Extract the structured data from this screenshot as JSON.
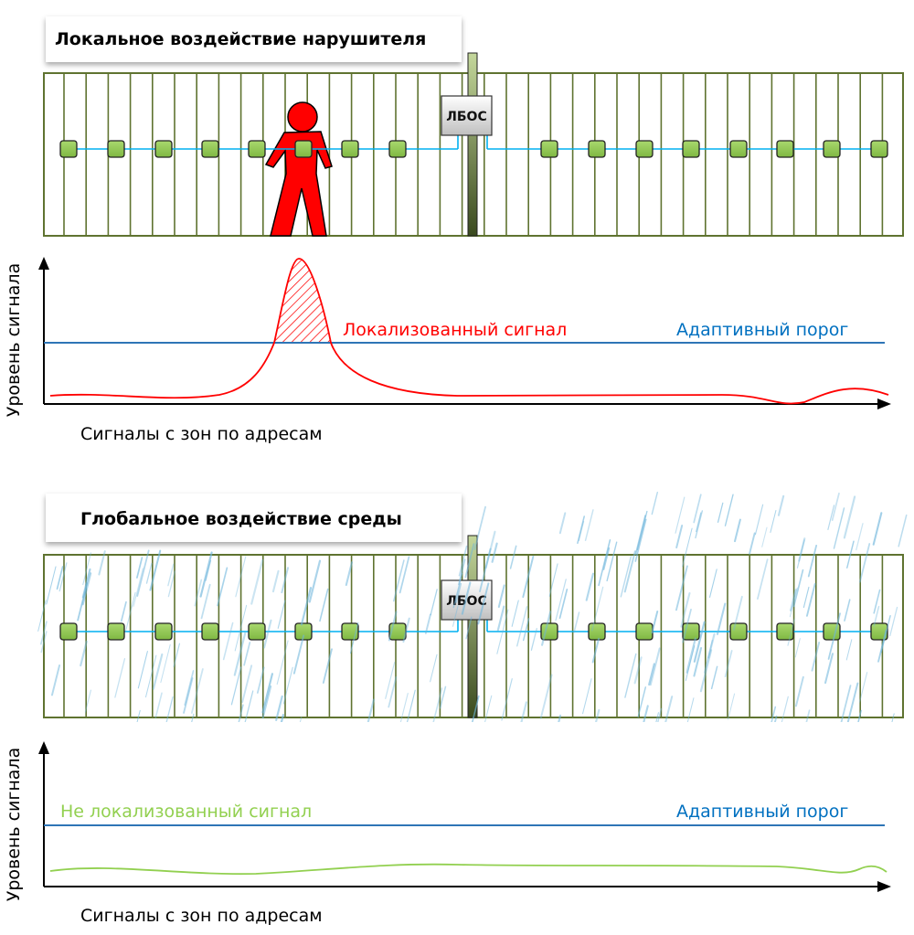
{
  "panels": [
    {
      "title": "Локальное воздействие нарушителя",
      "controller_label": "ЛБОС",
      "signal_label": "Локализованный сигнал",
      "threshold_label": "Адаптивный порог",
      "y_axis_label": "Уровень сигнала",
      "x_axis_label": "Сигналы с зон по адресам",
      "signal_color": "#ff0000",
      "intruder": "red-person-icon"
    },
    {
      "title": "Глобальное воздействие среды",
      "controller_label": "ЛБОС",
      "signal_label": "Не локализованный сигнал",
      "threshold_label": "Адаптивный порог",
      "y_axis_label": "Уровень сигнала",
      "x_axis_label": "Сигналы с зон по адресам",
      "signal_color": "#92d050",
      "environment": "rain-icon"
    }
  ],
  "colors": {
    "fence": "#5f7330",
    "sensor": "#92d050",
    "cable": "#00b0f0",
    "threshold": "#2e75b6"
  }
}
